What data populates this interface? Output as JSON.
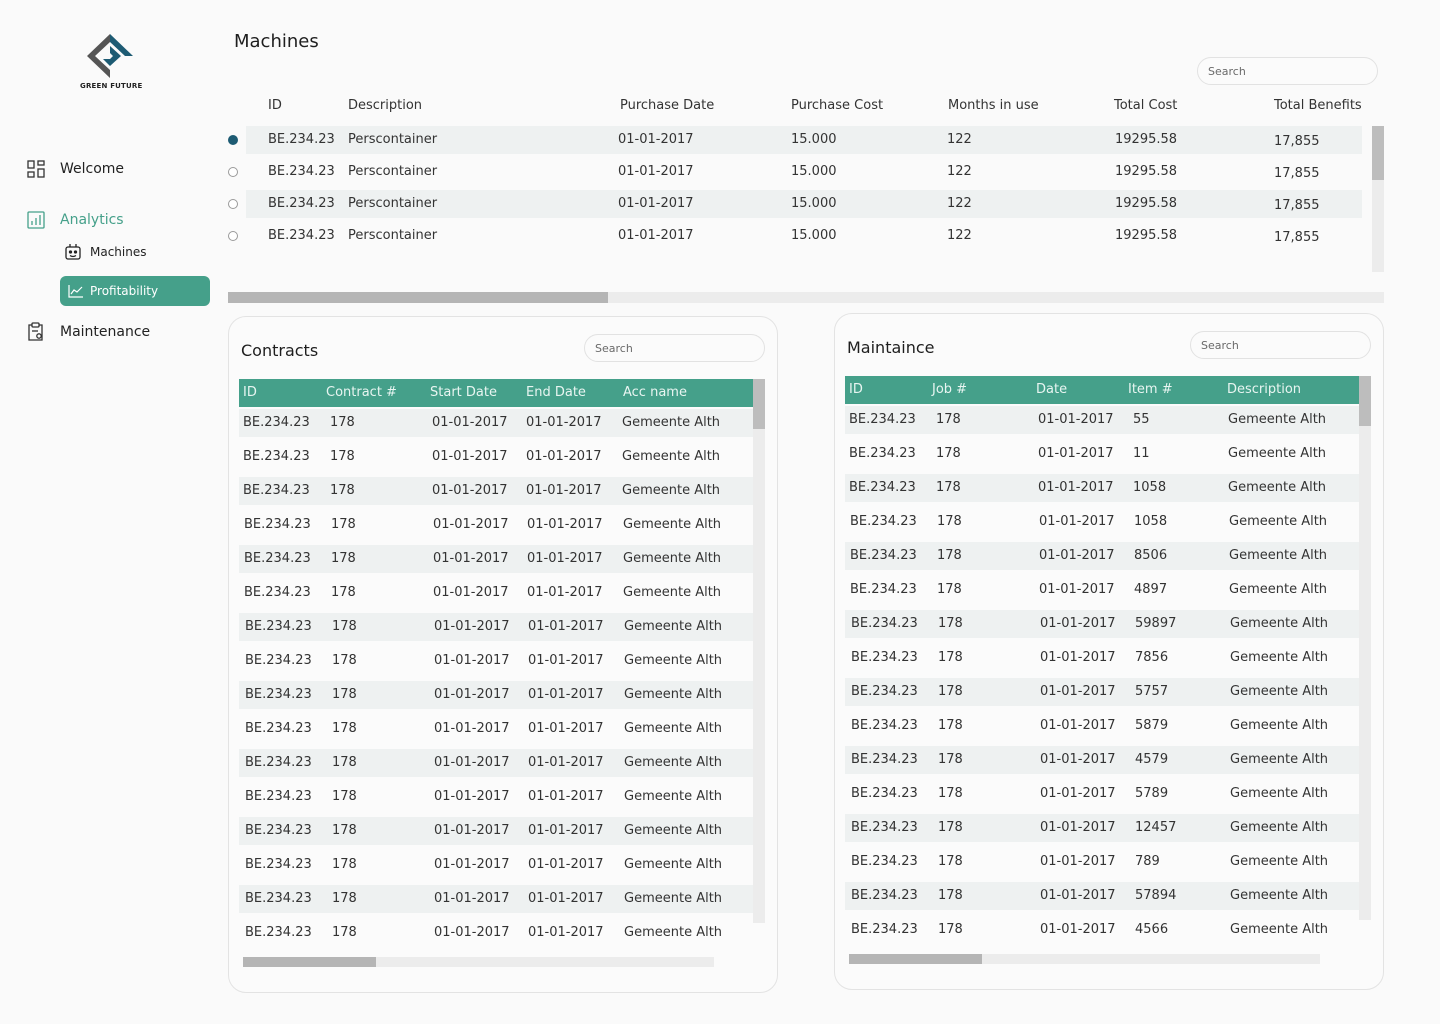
{
  "brand": {
    "name": "GREEN FUTURE",
    "accent": "#45a08a",
    "dark": "#1d5b73"
  },
  "sidebar": {
    "welcome": {
      "label": "Welcome",
      "icon": "dashboard-icon"
    },
    "analytics": {
      "label": "Analytics",
      "icon": "bar-chart-icon"
    },
    "machines": {
      "label": "Machines",
      "icon": "robot-icon"
    },
    "profitability": {
      "label": "Profitability",
      "icon": "line-chart-icon"
    },
    "maintenance": {
      "label": "Maintenance",
      "icon": "clipboard-gear-icon"
    }
  },
  "machines": {
    "title": "Machines",
    "search_placeholder": "Search",
    "headers": [
      "ID",
      "Description",
      "Purchase Date",
      "Purchase Cost",
      "Months in use",
      "Total Cost",
      "Total Benefits"
    ],
    "rows": [
      {
        "selected": true,
        "cells": [
          "BE.234.23",
          "Perscontainer",
          "01-01-2017",
          "15.000",
          "122",
          "19295.58",
          "17,855"
        ]
      },
      {
        "selected": false,
        "cells": [
          "BE.234.23",
          "Perscontainer",
          "01-01-2017",
          "15.000",
          "122",
          "19295.58",
          "17,855"
        ]
      },
      {
        "selected": false,
        "cells": [
          "BE.234.23",
          "Perscontainer",
          "01-01-2017",
          "15.000",
          "122",
          "19295.58",
          "17,855"
        ]
      },
      {
        "selected": false,
        "cells": [
          "BE.234.23",
          "Perscontainer",
          "01-01-2017",
          "15.000",
          "122",
          "19295.58",
          "17,855"
        ]
      }
    ]
  },
  "contracts": {
    "title": "Contracts",
    "search_placeholder": "Search",
    "headers": [
      "ID",
      "Contract #",
      "Start Date",
      "End Date",
      "Acc name"
    ],
    "rows": [
      [
        "BE.234.23",
        "178",
        "01-01-2017",
        "01-01-2017",
        "Gemeente Alth"
      ],
      [
        "BE.234.23",
        "178",
        "01-01-2017",
        "01-01-2017",
        "Gemeente Alth"
      ],
      [
        "BE.234.23",
        "178",
        "01-01-2017",
        "01-01-2017",
        "Gemeente Alth"
      ],
      [
        "BE.234.23",
        "178",
        "01-01-2017",
        "01-01-2017",
        "Gemeente Alth"
      ],
      [
        "BE.234.23",
        "178",
        "01-01-2017",
        "01-01-2017",
        "Gemeente Alth"
      ],
      [
        "BE.234.23",
        "178",
        "01-01-2017",
        "01-01-2017",
        "Gemeente Alth"
      ],
      [
        "BE.234.23",
        "178",
        "01-01-2017",
        "01-01-2017",
        "Gemeente Alth"
      ],
      [
        "BE.234.23",
        "178",
        "01-01-2017",
        "01-01-2017",
        "Gemeente Alth"
      ],
      [
        "BE.234.23",
        "178",
        "01-01-2017",
        "01-01-2017",
        "Gemeente Alth"
      ],
      [
        "BE.234.23",
        "178",
        "01-01-2017",
        "01-01-2017",
        "Gemeente Alth"
      ],
      [
        "BE.234.23",
        "178",
        "01-01-2017",
        "01-01-2017",
        "Gemeente Alth"
      ],
      [
        "BE.234.23",
        "178",
        "01-01-2017",
        "01-01-2017",
        "Gemeente Alth"
      ],
      [
        "BE.234.23",
        "178",
        "01-01-2017",
        "01-01-2017",
        "Gemeente Alth"
      ],
      [
        "BE.234.23",
        "178",
        "01-01-2017",
        "01-01-2017",
        "Gemeente Alth"
      ],
      [
        "BE.234.23",
        "178",
        "01-01-2017",
        "01-01-2017",
        "Gemeente Alth"
      ],
      [
        "BE.234.23",
        "178",
        "01-01-2017",
        "01-01-2017",
        "Gemeente Alth"
      ]
    ]
  },
  "maintenance": {
    "title": "Maintaince",
    "search_placeholder": "Search",
    "headers": [
      "ID",
      "Job #",
      "Date",
      "Item #",
      "Description"
    ],
    "rows": [
      [
        "BE.234.23",
        "178",
        "01-01-2017",
        "55",
        "Gemeente Alth"
      ],
      [
        "BE.234.23",
        "178",
        "01-01-2017",
        "11",
        "Gemeente Alth"
      ],
      [
        "BE.234.23",
        "178",
        "01-01-2017",
        "1058",
        "Gemeente Alth"
      ],
      [
        "BE.234.23",
        "178",
        "01-01-2017",
        "1058",
        "Gemeente Alth"
      ],
      [
        "BE.234.23",
        "178",
        "01-01-2017",
        "8506",
        "Gemeente Alth"
      ],
      [
        "BE.234.23",
        "178",
        "01-01-2017",
        "4897",
        "Gemeente Alth"
      ],
      [
        "BE.234.23",
        "178",
        "01-01-2017",
        "59897",
        "Gemeente Alth"
      ],
      [
        "BE.234.23",
        "178",
        "01-01-2017",
        "7856",
        "Gemeente Alth"
      ],
      [
        "BE.234.23",
        "178",
        "01-01-2017",
        "5757",
        "Gemeente Alth"
      ],
      [
        "BE.234.23",
        "178",
        "01-01-2017",
        "5879",
        "Gemeente Alth"
      ],
      [
        "BE.234.23",
        "178",
        "01-01-2017",
        "4579",
        "Gemeente Alth"
      ],
      [
        "BE.234.23",
        "178",
        "01-01-2017",
        "5789",
        "Gemeente Alth"
      ],
      [
        "BE.234.23",
        "178",
        "01-01-2017",
        "12457",
        "Gemeente Alth"
      ],
      [
        "BE.234.23",
        "178",
        "01-01-2017",
        "789",
        "Gemeente Alth"
      ],
      [
        "BE.234.23",
        "178",
        "01-01-2017",
        "57894",
        "Gemeente Alth"
      ],
      [
        "BE.234.23",
        "178",
        "01-01-2017",
        "4566",
        "Gemeente Alth"
      ]
    ]
  }
}
